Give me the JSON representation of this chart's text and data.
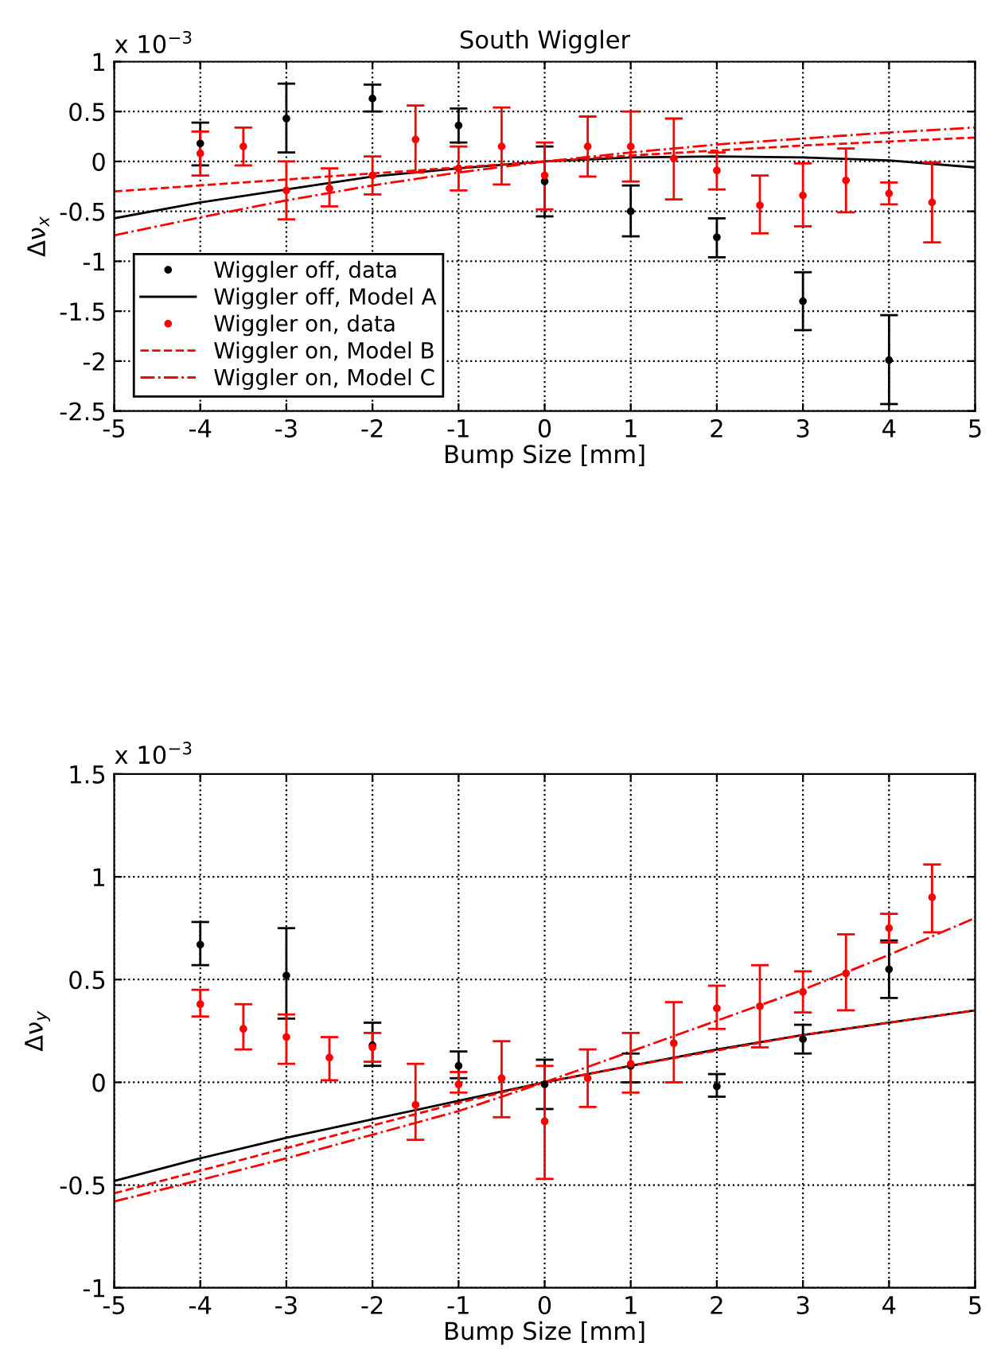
{
  "chart_data": [
    {
      "type": "scatter",
      "title": "South Wiggler",
      "xlabel": "Bump Size [mm]",
      "ylabel": "Δν$_{x}$",
      "annotations": [
        "x 10$^{−3}$"
      ],
      "xlim": [
        -5,
        5
      ],
      "xticks": [
        -5,
        -4,
        -3,
        -2,
        -1,
        0,
        1,
        2,
        3,
        4,
        5
      ],
      "ylim": [
        -2.5,
        1
      ],
      "yticks": [
        -2.5,
        -2,
        -1.5,
        -1,
        -0.5,
        0,
        0.5,
        1
      ],
      "grid": true,
      "legend": "bottom left",
      "series": [
        {
          "name": "Wiggler off, data",
          "color": "#000000",
          "marker": "circle",
          "x": [
            -4,
            -3,
            -2,
            -1,
            0,
            1,
            2,
            3,
            4
          ],
          "values": [
            0.18,
            0.43,
            0.63,
            0.36,
            -0.2,
            -0.5,
            -0.76,
            -1.4,
            -1.99
          ],
          "errors": [
            [
              -0.04,
              0.39
            ],
            [
              0.09,
              0.78
            ],
            [
              0.5,
              0.77
            ],
            [
              0.19,
              0.53
            ],
            [
              -0.55,
              0.15
            ],
            [
              -0.75,
              -0.24
            ],
            [
              -0.96,
              -0.57
            ],
            [
              -1.69,
              -1.11
            ],
            [
              -2.43,
              -1.54
            ]
          ]
        },
        {
          "name": "Wiggler off, Model A",
          "type": "line",
          "color": "#000000",
          "marker": "none",
          "line_style": "solid",
          "x": [
            -5,
            -4,
            -3,
            -2,
            -1,
            0,
            1,
            2,
            3,
            4,
            5
          ],
          "values": [
            -0.57,
            -0.41,
            -0.28,
            -0.15,
            -0.07,
            0,
            0.04,
            0.05,
            0.04,
            0.01,
            -0.06
          ]
        },
        {
          "name": "Wiggler on, data",
          "color": "#ff0000",
          "marker": "circle",
          "x": [
            -4,
            -3.5,
            -3,
            -2.5,
            -2,
            -1.5,
            -1,
            -0.5,
            0,
            0.5,
            1,
            1.5,
            2,
            2.5,
            3,
            3.5,
            4,
            4.5
          ],
          "values": [
            0.08,
            0.15,
            -0.29,
            -0.27,
            -0.14,
            0.22,
            -0.07,
            0.15,
            -0.14,
            0.15,
            0.15,
            0.03,
            -0.09,
            -0.44,
            -0.34,
            -0.19,
            -0.32,
            -0.41
          ],
          "errors": [
            [
              -0.14,
              0.3
            ],
            [
              -0.04,
              0.34
            ],
            [
              -0.58,
              0.0
            ],
            [
              -0.45,
              -0.07
            ],
            [
              -0.33,
              0.05
            ],
            [
              -0.11,
              0.56
            ],
            [
              -0.29,
              0.15
            ],
            [
              -0.23,
              0.54
            ],
            [
              -0.48,
              0.19
            ],
            [
              -0.15,
              0.45
            ],
            [
              -0.2,
              0.5
            ],
            [
              -0.38,
              0.43
            ],
            [
              -0.28,
              0.09
            ],
            [
              -0.72,
              -0.14
            ],
            [
              -0.65,
              -0.02
            ],
            [
              -0.51,
              0.13
            ],
            [
              -0.43,
              -0.21
            ],
            [
              -0.81,
              -0.01
            ]
          ]
        },
        {
          "name": "Wiggler on, Model B",
          "type": "line",
          "color": "#ff0000",
          "marker": "none",
          "line_style": "dashed",
          "x": [
            -5,
            -3,
            -1,
            0,
            1,
            3,
            5
          ],
          "values": [
            -0.3,
            -0.18,
            -0.06,
            0,
            0.06,
            0.16,
            0.24
          ]
        },
        {
          "name": "Wiggler on, Model C",
          "type": "line",
          "color": "#ff0000",
          "marker": "none",
          "line_style": "dashdot",
          "x": [
            -5,
            -4,
            -3,
            -2,
            -1,
            0,
            1,
            2,
            3,
            4,
            5
          ],
          "values": [
            -0.74,
            -0.56,
            -0.39,
            -0.24,
            -0.11,
            0,
            0.09,
            0.17,
            0.23,
            0.29,
            0.34
          ]
        }
      ]
    },
    {
      "type": "scatter",
      "xlabel": "Bump Size [mm]",
      "ylabel": "Δν$_{y}$",
      "annotations": [
        "x 10$^{−3}$"
      ],
      "xlim": [
        -5,
        5
      ],
      "xticks": [
        -5,
        -4,
        -3,
        -2,
        -1,
        0,
        1,
        2,
        3,
        4,
        5
      ],
      "ylim": [
        -1,
        1.5
      ],
      "yticks": [
        -1,
        -0.5,
        0,
        0.5,
        1,
        1.5
      ],
      "grid": true,
      "series": [
        {
          "color": "#000000",
          "marker": "circle",
          "x": [
            -4,
            -3,
            -2,
            -1,
            0,
            1,
            2,
            3,
            4
          ],
          "values": [
            0.67,
            0.52,
            0.18,
            0.08,
            -0.01,
            0.08,
            -0.02,
            0.21,
            0.55
          ],
          "errors": [
            [
              0.57,
              0.78
            ],
            [
              0.31,
              0.75
            ],
            [
              0.08,
              0.29
            ],
            [
              0.02,
              0.15
            ],
            [
              -0.13,
              0.11
            ],
            [
              0.0,
              0.14
            ],
            [
              -0.07,
              0.04
            ],
            [
              0.14,
              0.28
            ],
            [
              0.41,
              0.69
            ]
          ]
        },
        {
          "type": "line",
          "color": "#000000",
          "marker": "none",
          "line_style": "solid",
          "x": [
            -5,
            -4,
            -3,
            -2,
            -1,
            0,
            1,
            2,
            3,
            4,
            5
          ],
          "values": [
            -0.48,
            -0.37,
            -0.27,
            -0.18,
            -0.09,
            0,
            0.08,
            0.16,
            0.23,
            0.29,
            0.35
          ]
        },
        {
          "color": "#ff0000",
          "marker": "circle",
          "x": [
            -4,
            -3.5,
            -3,
            -2.5,
            -2,
            -1.5,
            -1,
            -0.5,
            0,
            0.5,
            1,
            1.5,
            2,
            2.5,
            3,
            3.5,
            4,
            4.5
          ],
          "values": [
            0.38,
            0.26,
            0.22,
            0.12,
            0.17,
            -0.11,
            -0.01,
            0.02,
            -0.19,
            0.02,
            0.09,
            0.19,
            0.36,
            0.37,
            0.44,
            0.53,
            0.75,
            0.9
          ],
          "errors": [
            [
              0.32,
              0.45
            ],
            [
              0.16,
              0.38
            ],
            [
              0.09,
              0.33
            ],
            [
              0.01,
              0.22
            ],
            [
              0.1,
              0.24
            ],
            [
              -0.28,
              0.09
            ],
            [
              -0.05,
              0.05
            ],
            [
              -0.17,
              0.2
            ],
            [
              -0.47,
              0.08
            ],
            [
              -0.12,
              0.16
            ],
            [
              -0.05,
              0.24
            ],
            [
              0.0,
              0.39
            ],
            [
              0.26,
              0.47
            ],
            [
              0.17,
              0.57
            ],
            [
              0.34,
              0.54
            ],
            [
              0.35,
              0.72
            ],
            [
              0.68,
              0.82
            ],
            [
              0.73,
              1.06
            ]
          ]
        },
        {
          "type": "line",
          "color": "#ff0000",
          "marker": "none",
          "line_style": "dashed",
          "x": [
            -5,
            -3,
            -1,
            0,
            1,
            3,
            5
          ],
          "values": [
            -0.54,
            -0.32,
            -0.1,
            0,
            0.08,
            0.23,
            0.35
          ]
        },
        {
          "type": "line",
          "color": "#ff0000",
          "marker": "none",
          "line_style": "dashdot",
          "x": [
            -5,
            -3,
            -1,
            0,
            1,
            3,
            4,
            5
          ],
          "values": [
            -0.58,
            -0.37,
            -0.14,
            0,
            0.15,
            0.45,
            0.62,
            0.8
          ]
        }
      ]
    }
  ]
}
